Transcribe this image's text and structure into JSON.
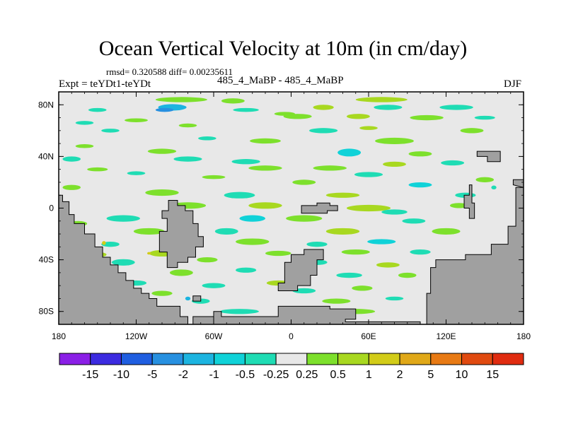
{
  "chart_data": {
    "type": "heatmap",
    "title": "Ocean Vertical Velocity at 10m (in cm/day)",
    "subtitle_stats": "rmsd= 0.320588 diff= 0.00235611",
    "experiment": "Expt = teYDt1-teYDt",
    "case_label": "485_4_MaBP - 485_4_MaBP",
    "season": "DJF",
    "x_range": [
      -180,
      180
    ],
    "y_range": [
      -90,
      90
    ],
    "x_ticks": [
      {
        "value": -180,
        "label": "180"
      },
      {
        "value": -120,
        "label": "120W"
      },
      {
        "value": -60,
        "label": "60W"
      },
      {
        "value": 0,
        "label": "0"
      },
      {
        "value": 60,
        "label": "60E"
      },
      {
        "value": 120,
        "label": "120E"
      },
      {
        "value": 180,
        "label": "180"
      }
    ],
    "y_ticks": [
      {
        "value": 80,
        "label": "80N"
      },
      {
        "value": 40,
        "label": "40N"
      },
      {
        "value": 0,
        "label": "0"
      },
      {
        "value": -40,
        "label": "40S"
      },
      {
        "value": -80,
        "label": "80S"
      }
    ],
    "colorbar": {
      "levels": [
        "-15",
        "-10",
        "-5",
        "-2",
        "-1",
        "-0.5",
        "-0.25",
        "0.25",
        "0.5",
        "1",
        "2",
        "5",
        "10",
        "15"
      ],
      "colors": [
        "#8a1fe6",
        "#3c2be0",
        "#1f5ee0",
        "#2790e0",
        "#1cb4e0",
        "#10d2d8",
        "#1fdcb4",
        "#e8e8e8",
        "#7de02c",
        "#a8d820",
        "#d2cc18",
        "#e0a818",
        "#e87a14",
        "#e04a10",
        "#e02c10"
      ]
    },
    "land_color": "#a0a0a0",
    "background_color": "#e8e8e8",
    "patches": [
      {
        "lon": -85,
        "lat": 84,
        "w": 40,
        "h": 4,
        "cat": "pos1"
      },
      {
        "lon": -45,
        "lat": 83,
        "w": 18,
        "h": 4,
        "cat": "pos1"
      },
      {
        "lon": 70,
        "lat": 84,
        "w": 40,
        "h": 4,
        "cat": "pos2"
      },
      {
        "lon": -92,
        "lat": 78,
        "w": 22,
        "h": 5,
        "cat": "neg3"
      },
      {
        "lon": -98,
        "lat": 76,
        "w": 14,
        "h": 3,
        "cat": "neg4"
      },
      {
        "lon": 25,
        "lat": 78,
        "w": 16,
        "h": 4,
        "cat": "pos2"
      },
      {
        "lon": 75,
        "lat": 78,
        "w": 22,
        "h": 4,
        "cat": "neg1"
      },
      {
        "lon": 128,
        "lat": 78,
        "w": 26,
        "h": 4,
        "cat": "neg1"
      },
      {
        "lon": -150,
        "lat": 76,
        "w": 14,
        "h": 3,
        "cat": "neg1"
      },
      {
        "lon": -35,
        "lat": 76,
        "w": 20,
        "h": 3,
        "cat": "neg1"
      },
      {
        "lon": -5,
        "lat": 73,
        "w": 16,
        "h": 3,
        "cat": "pos1"
      },
      {
        "lon": 5,
        "lat": 71,
        "w": 22,
        "h": 4,
        "cat": "pos1"
      },
      {
        "lon": 52,
        "lat": 71,
        "w": 18,
        "h": 4,
        "cat": "pos2"
      },
      {
        "lon": 105,
        "lat": 70,
        "w": 26,
        "h": 4,
        "cat": "pos1"
      },
      {
        "lon": 150,
        "lat": 70,
        "w": 16,
        "h": 3,
        "cat": "neg1"
      },
      {
        "lon": -120,
        "lat": 68,
        "w": 18,
        "h": 3,
        "cat": "pos1"
      },
      {
        "lon": -160,
        "lat": 66,
        "w": 14,
        "h": 3,
        "cat": "neg1"
      },
      {
        "lon": -80,
        "lat": 64,
        "w": 14,
        "h": 3,
        "cat": "pos1"
      },
      {
        "lon": 25,
        "lat": 60,
        "w": 22,
        "h": 4,
        "cat": "neg1"
      },
      {
        "lon": 60,
        "lat": 62,
        "w": 14,
        "h": 3,
        "cat": "pos2"
      },
      {
        "lon": -140,
        "lat": 60,
        "w": 14,
        "h": 3,
        "cat": "neg1"
      },
      {
        "lon": 140,
        "lat": 60,
        "w": 18,
        "h": 4,
        "cat": "pos1"
      },
      {
        "lon": -65,
        "lat": 54,
        "w": 14,
        "h": 3,
        "cat": "neg1"
      },
      {
        "lon": -20,
        "lat": 52,
        "w": 24,
        "h": 4,
        "cat": "pos1"
      },
      {
        "lon": 80,
        "lat": 52,
        "w": 30,
        "h": 5,
        "cat": "pos1"
      },
      {
        "lon": -160,
        "lat": 48,
        "w": 14,
        "h": 3,
        "cat": "pos1"
      },
      {
        "lon": -100,
        "lat": 44,
        "w": 22,
        "h": 4,
        "cat": "pos1"
      },
      {
        "lon": 45,
        "lat": 43,
        "w": 18,
        "h": 6,
        "cat": "neg2"
      },
      {
        "lon": 100,
        "lat": 42,
        "w": 18,
        "h": 4,
        "cat": "pos1"
      },
      {
        "lon": -170,
        "lat": 38,
        "w": 14,
        "h": 4,
        "cat": "neg1"
      },
      {
        "lon": -80,
        "lat": 38,
        "w": 22,
        "h": 4,
        "cat": "neg1"
      },
      {
        "lon": -35,
        "lat": 36,
        "w": 22,
        "h": 4,
        "cat": "neg1"
      },
      {
        "lon": -20,
        "lat": 31,
        "w": 26,
        "h": 4,
        "cat": "pos1"
      },
      {
        "lon": 30,
        "lat": 31,
        "w": 26,
        "h": 4,
        "cat": "pos1"
      },
      {
        "lon": 80,
        "lat": 34,
        "w": 18,
        "h": 4,
        "cat": "pos2"
      },
      {
        "lon": 125,
        "lat": 35,
        "w": 18,
        "h": 4,
        "cat": "neg1"
      },
      {
        "lon": -150,
        "lat": 30,
        "w": 16,
        "h": 3,
        "cat": "pos1"
      },
      {
        "lon": -120,
        "lat": 27,
        "w": 14,
        "h": 3,
        "cat": "neg1"
      },
      {
        "lon": 60,
        "lat": 26,
        "w": 22,
        "h": 4,
        "cat": "neg1"
      },
      {
        "lon": 150,
        "lat": 22,
        "w": 14,
        "h": 4,
        "cat": "pos1"
      },
      {
        "lon": -60,
        "lat": 24,
        "w": 18,
        "h": 3,
        "cat": "pos1"
      },
      {
        "lon": 10,
        "lat": 20,
        "w": 18,
        "h": 4,
        "cat": "pos1"
      },
      {
        "lon": 100,
        "lat": 18,
        "w": 18,
        "h": 4,
        "cat": "neg2"
      },
      {
        "lon": -170,
        "lat": 16,
        "w": 14,
        "h": 4,
        "cat": "pos1"
      },
      {
        "lon": -100,
        "lat": 12,
        "w": 26,
        "h": 5,
        "cat": "pos1"
      },
      {
        "lon": -40,
        "lat": 10,
        "w": 24,
        "h": 5,
        "cat": "neg1"
      },
      {
        "lon": 40,
        "lat": 10,
        "w": 26,
        "h": 4,
        "cat": "pos2"
      },
      {
        "lon": 135,
        "lat": 10,
        "w": 16,
        "h": 4,
        "cat": "neg1"
      },
      {
        "lon": -80,
        "lat": 2,
        "w": 28,
        "h": 5,
        "cat": "pos1"
      },
      {
        "lon": -20,
        "lat": 2,
        "w": 26,
        "h": 5,
        "cat": "pos2"
      },
      {
        "lon": 60,
        "lat": 0,
        "w": 34,
        "h": 5,
        "cat": "pos2"
      },
      {
        "lon": 80,
        "lat": -3,
        "w": 20,
        "h": 4,
        "cat": "neg1"
      },
      {
        "lon": 130,
        "lat": 2,
        "w": 14,
        "h": 4,
        "cat": "pos1"
      },
      {
        "lon": -130,
        "lat": -8,
        "w": 26,
        "h": 5,
        "cat": "neg1"
      },
      {
        "lon": -30,
        "lat": -8,
        "w": 20,
        "h": 5,
        "cat": "neg2"
      },
      {
        "lon": 10,
        "lat": -8,
        "w": 28,
        "h": 5,
        "cat": "pos1"
      },
      {
        "lon": 95,
        "lat": -10,
        "w": 18,
        "h": 4,
        "cat": "neg1"
      },
      {
        "lon": -165,
        "lat": -12,
        "w": 14,
        "h": 4,
        "cat": "pos1"
      },
      {
        "lon": -110,
        "lat": -18,
        "w": 24,
        "h": 5,
        "cat": "pos1"
      },
      {
        "lon": -50,
        "lat": -18,
        "w": 18,
        "h": 5,
        "cat": "neg1"
      },
      {
        "lon": 40,
        "lat": -18,
        "w": 26,
        "h": 5,
        "cat": "pos2"
      },
      {
        "lon": 120,
        "lat": -18,
        "w": 22,
        "h": 5,
        "cat": "pos1"
      },
      {
        "lon": -140,
        "lat": -28,
        "w": 14,
        "h": 4,
        "cat": "neg1"
      },
      {
        "lon": -30,
        "lat": -26,
        "w": 26,
        "h": 5,
        "cat": "pos1"
      },
      {
        "lon": 20,
        "lat": -28,
        "w": 16,
        "h": 4,
        "cat": "neg1"
      },
      {
        "lon": 70,
        "lat": -26,
        "w": 22,
        "h": 4,
        "cat": "neg2"
      },
      {
        "lon": -150,
        "lat": -36,
        "w": 14,
        "h": 4,
        "cat": "pos2"
      },
      {
        "lon": -100,
        "lat": -35,
        "w": 20,
        "h": 5,
        "cat": "pos2"
      },
      {
        "lon": -10,
        "lat": -35,
        "w": 20,
        "h": 4,
        "cat": "pos1"
      },
      {
        "lon": 50,
        "lat": -34,
        "w": 22,
        "h": 4,
        "cat": "pos1"
      },
      {
        "lon": 100,
        "lat": -34,
        "w": 16,
        "h": 4,
        "cat": "neg1"
      },
      {
        "lon": -130,
        "lat": -42,
        "w": 18,
        "h": 5,
        "cat": "neg1"
      },
      {
        "lon": -65,
        "lat": -40,
        "w": 16,
        "h": 4,
        "cat": "pos1"
      },
      {
        "lon": 20,
        "lat": -42,
        "w": 16,
        "h": 4,
        "cat": "neg1"
      },
      {
        "lon": 75,
        "lat": -44,
        "w": 18,
        "h": 4,
        "cat": "pos2"
      },
      {
        "lon": -150,
        "lat": -48,
        "w": 14,
        "h": 4,
        "cat": "pos1"
      },
      {
        "lon": -85,
        "lat": -50,
        "w": 18,
        "h": 5,
        "cat": "pos1"
      },
      {
        "lon": -35,
        "lat": -48,
        "w": 16,
        "h": 4,
        "cat": "neg1"
      },
      {
        "lon": 45,
        "lat": -52,
        "w": 20,
        "h": 4,
        "cat": "neg1"
      },
      {
        "lon": 90,
        "lat": -52,
        "w": 14,
        "h": 4,
        "cat": "pos1"
      },
      {
        "lon": -120,
        "lat": -58,
        "w": 16,
        "h": 4,
        "cat": "neg1"
      },
      {
        "lon": -60,
        "lat": -60,
        "w": 18,
        "h": 4,
        "cat": "neg1"
      },
      {
        "lon": -10,
        "lat": -58,
        "w": 18,
        "h": 4,
        "cat": "pos2"
      },
      {
        "lon": 10,
        "lat": -64,
        "w": 18,
        "h": 4,
        "cat": "neg1"
      },
      {
        "lon": 55,
        "lat": -62,
        "w": 16,
        "h": 4,
        "cat": "pos1"
      },
      {
        "lon": -150,
        "lat": -64,
        "w": 14,
        "h": 4,
        "cat": "pos1"
      },
      {
        "lon": -100,
        "lat": -66,
        "w": 16,
        "h": 4,
        "cat": "pos1"
      },
      {
        "lon": 35,
        "lat": -72,
        "w": 22,
        "h": 4,
        "cat": "pos1"
      },
      {
        "lon": -70,
        "lat": -72,
        "w": 14,
        "h": 4,
        "cat": "neg1"
      },
      {
        "lon": 80,
        "lat": -70,
        "w": 14,
        "h": 3,
        "cat": "neg1"
      },
      {
        "lon": -40,
        "lat": -80,
        "w": 30,
        "h": 4,
        "cat": "neg1"
      },
      {
        "lon": 50,
        "lat": -80,
        "w": 30,
        "h": 4,
        "cat": "pos1"
      },
      {
        "lon": 10,
        "lat": -82,
        "w": 14,
        "h": 3,
        "cat": "pos2"
      },
      {
        "lon": -145,
        "lat": -27,
        "w": 3,
        "h": 3,
        "cat": "pos3"
      },
      {
        "lon": -110,
        "lat": -35,
        "w": 3,
        "h": 2,
        "cat": "pos3"
      },
      {
        "lon": -80,
        "lat": -70,
        "w": 4,
        "h": 3,
        "cat": "neg3"
      },
      {
        "lon": 157,
        "lat": 16,
        "w": 4,
        "h": 3,
        "cat": "neg1"
      }
    ],
    "land": [
      [
        [
          -180,
          10
        ],
        [
          -177,
          10
        ],
        [
          -177,
          5
        ],
        [
          -172,
          5
        ],
        [
          -172,
          -5
        ],
        [
          -168,
          -5
        ],
        [
          -168,
          -12
        ],
        [
          -160,
          -12
        ],
        [
          -160,
          -20
        ],
        [
          -152,
          -20
        ],
        [
          -152,
          -30
        ],
        [
          -146,
          -30
        ],
        [
          -146,
          -38
        ],
        [
          -140,
          -38
        ],
        [
          -140,
          -44
        ],
        [
          -134,
          -44
        ],
        [
          -134,
          -50
        ],
        [
          -128,
          -50
        ],
        [
          -128,
          -56
        ],
        [
          -122,
          -56
        ],
        [
          -122,
          -62
        ],
        [
          -116,
          -62
        ],
        [
          -116,
          -66
        ],
        [
          -110,
          -66
        ],
        [
          -110,
          -70
        ],
        [
          -104,
          -70
        ],
        [
          -104,
          -76
        ],
        [
          -86,
          -76
        ],
        [
          -86,
          -84
        ],
        [
          -80,
          -84
        ],
        [
          -80,
          -90
        ],
        [
          -180,
          -90
        ]
      ],
      [
        [
          -180,
          -90
        ],
        [
          -60,
          -90
        ],
        [
          -60,
          -84
        ],
        [
          -76,
          -84
        ],
        [
          -76,
          -90
        ]
      ],
      [
        [
          -60,
          -90
        ],
        [
          -60,
          -80
        ],
        [
          -54,
          -80
        ],
        [
          -54,
          -84
        ],
        [
          -10,
          -84
        ],
        [
          -10,
          -76
        ],
        [
          30,
          -76
        ],
        [
          30,
          -78
        ],
        [
          50,
          -78
        ],
        [
          50,
          -86
        ],
        [
          42,
          -86
        ],
        [
          42,
          -88
        ],
        [
          100,
          -88
        ],
        [
          100,
          -90
        ]
      ],
      [
        [
          -95,
          6
        ],
        [
          -88,
          6
        ],
        [
          -88,
          2
        ],
        [
          -82,
          2
        ],
        [
          -82,
          -2
        ],
        [
          -76,
          -2
        ],
        [
          -76,
          -12
        ],
        [
          -72,
          -12
        ],
        [
          -72,
          -22
        ],
        [
          -68,
          -22
        ],
        [
          -68,
          -30
        ],
        [
          -74,
          -30
        ],
        [
          -74,
          -38
        ],
        [
          -80,
          -38
        ],
        [
          -80,
          -42
        ],
        [
          -88,
          -42
        ],
        [
          -88,
          -46
        ],
        [
          -96,
          -46
        ],
        [
          -96,
          -34
        ],
        [
          -102,
          -34
        ],
        [
          -102,
          -18
        ],
        [
          -96,
          -18
        ],
        [
          -96,
          -8
        ],
        [
          -100,
          -8
        ],
        [
          -100,
          -2
        ],
        [
          -95,
          -2
        ]
      ],
      [
        [
          -5,
          -48
        ],
        [
          -5,
          -42
        ],
        [
          0,
          -42
        ],
        [
          0,
          -36
        ],
        [
          10,
          -36
        ],
        [
          10,
          -32
        ],
        [
          25,
          -32
        ],
        [
          25,
          -40
        ],
        [
          20,
          -40
        ],
        [
          20,
          -52
        ],
        [
          15,
          -52
        ],
        [
          15,
          -60
        ],
        [
          5,
          -60
        ],
        [
          5,
          -64
        ],
        [
          -10,
          -64
        ],
        [
          -10,
          -58
        ],
        [
          -5,
          -58
        ]
      ],
      [
        [
          8,
          -4
        ],
        [
          8,
          2
        ],
        [
          20,
          2
        ],
        [
          20,
          4
        ],
        [
          30,
          4
        ],
        [
          30,
          2
        ],
        [
          36,
          2
        ],
        [
          36,
          -2
        ],
        [
          28,
          -2
        ],
        [
          28,
          -4
        ]
      ],
      [
        [
          105,
          -90
        ],
        [
          105,
          -66
        ],
        [
          108,
          -66
        ],
        [
          108,
          -46
        ],
        [
          112,
          -46
        ],
        [
          112,
          -40
        ],
        [
          135,
          -40
        ],
        [
          135,
          -36
        ],
        [
          155,
          -36
        ],
        [
          155,
          -28
        ],
        [
          168,
          -28
        ],
        [
          168,
          -14
        ],
        [
          174,
          -14
        ],
        [
          174,
          16
        ],
        [
          180,
          16
        ],
        [
          180,
          -90
        ]
      ],
      [
        [
          144,
          44
        ],
        [
          144,
          40
        ],
        [
          152,
          40
        ],
        [
          152,
          36
        ],
        [
          162,
          36
        ],
        [
          162,
          44
        ]
      ],
      [
        [
          138,
          18
        ],
        [
          138,
          10
        ],
        [
          134,
          10
        ],
        [
          134,
          0
        ],
        [
          138,
          0
        ],
        [
          138,
          -8
        ],
        [
          142,
          -8
        ],
        [
          142,
          4
        ],
        [
          140,
          4
        ],
        [
          140,
          18
        ]
      ],
      [
        [
          172,
          18
        ],
        [
          172,
          22
        ],
        [
          180,
          22
        ],
        [
          180,
          16
        ]
      ],
      [
        [
          -76,
          -68
        ],
        [
          -76,
          -72
        ],
        [
          -70,
          -72
        ],
        [
          -70,
          -68
        ]
      ]
    ]
  }
}
